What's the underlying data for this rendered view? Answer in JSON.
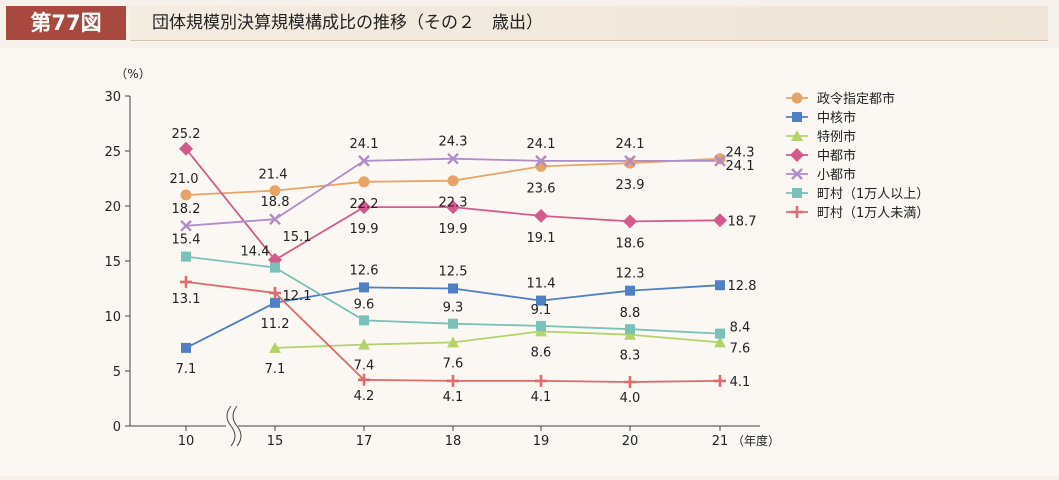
{
  "header": {
    "figure_label": "第77図",
    "title": "団体規模別決算規模構成比の推移（その２　歳出）"
  },
  "chart_data": {
    "type": "line",
    "title": "",
    "ylabel": "（%）",
    "xlabel": "（年度）",
    "categories": [
      "10",
      "15",
      "17",
      "18",
      "19",
      "20",
      "21"
    ],
    "ylim": [
      0,
      30
    ],
    "yticks": [
      "0",
      "5",
      "10",
      "15",
      "20",
      "25",
      "30"
    ],
    "axis_break": true,
    "legend_position": "right",
    "series": [
      {
        "name": "政令指定都市",
        "color": "#e8a466",
        "marker": "circle",
        "values": [
          21.0,
          21.4,
          22.2,
          22.3,
          23.6,
          23.9,
          24.3
        ],
        "labels": [
          "21.0",
          "21.4",
          "22.2",
          "22.3",
          "23.6",
          "23.9",
          "24.3"
        ]
      },
      {
        "name": "中核市",
        "color": "#4f7fc6",
        "marker": "square",
        "values": [
          7.1,
          11.2,
          12.6,
          12.5,
          11.4,
          12.3,
          12.8
        ],
        "labels": [
          "7.1",
          "11.2",
          "12.6",
          "12.5",
          "11.4",
          "12.3",
          "12.8"
        ]
      },
      {
        "name": "特例市",
        "color": "#b3d36a",
        "marker": "triangle",
        "values": [
          null,
          7.1,
          7.4,
          7.6,
          8.6,
          8.3,
          7.6
        ],
        "labels": [
          "",
          "7.1",
          "7.4",
          "7.6",
          "8.6",
          "8.3",
          "7.6"
        ]
      },
      {
        "name": "中都市",
        "color": "#d45a8e",
        "marker": "diamond",
        "values": [
          25.2,
          15.1,
          19.9,
          19.9,
          19.1,
          18.6,
          18.7
        ],
        "labels": [
          "25.2",
          "15.1",
          "19.9",
          "19.9",
          "19.1",
          "18.6",
          "18.7"
        ]
      },
      {
        "name": "小都市",
        "color": "#b08cc8",
        "marker": "x",
        "values": [
          18.2,
          18.8,
          24.1,
          24.3,
          24.1,
          24.1,
          24.1
        ],
        "labels": [
          "18.2",
          "18.8",
          "24.1",
          "24.3",
          "24.1",
          "24.1",
          "24.1"
        ]
      },
      {
        "name": "町村（1万人以上）",
        "color": "#79c1b9",
        "marker": "square",
        "values": [
          15.4,
          14.4,
          9.6,
          9.3,
          9.1,
          8.8,
          8.4
        ],
        "labels": [
          "15.4",
          "14.4",
          "9.6",
          "9.3",
          "9.1",
          "8.8",
          "8.4"
        ]
      },
      {
        "name": "町村（1万人未満）",
        "color": "#e06a6d",
        "marker": "plus",
        "values": [
          13.1,
          12.1,
          4.2,
          4.1,
          4.1,
          4.0,
          4.1
        ],
        "labels": [
          "13.1",
          "12.1",
          "4.2",
          "4.1",
          "4.1",
          "4.0",
          "4.1"
        ]
      }
    ]
  }
}
